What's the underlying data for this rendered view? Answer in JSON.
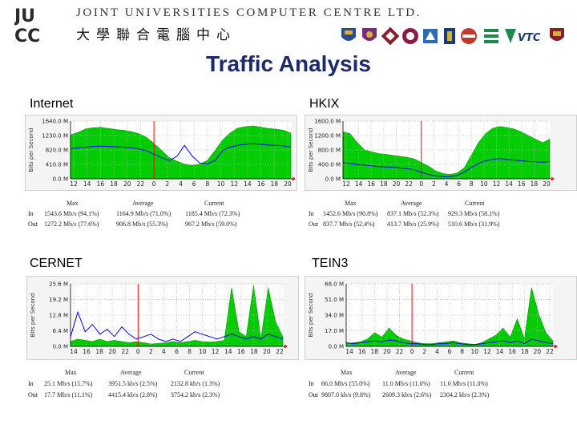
{
  "header": {
    "logo_text": "JUCC",
    "org_name_en": "JOINT UNIVERSITIES COMPUTER CENTRE LTD.",
    "org_name_zh": "大學聯合電腦中心",
    "member_emblems": [
      "hku-emblem",
      "cuhk-emblem",
      "polyu-emblem",
      "cityu-emblem",
      "hkbu-emblem",
      "hkust-emblem",
      "lingnan-emblem",
      "eduhk-emblem",
      "vtc-logo",
      "ouhk-emblem"
    ],
    "vtc_label": "VTC"
  },
  "title": "Traffic Analysis",
  "colors": {
    "in": "#00cc00",
    "out": "#0000ff",
    "grid_marker": "#ff0000",
    "title": "#1d2a6b"
  },
  "stats_headers": [
    "Max",
    "Average",
    "Current"
  ],
  "stats_row_labels": [
    "In",
    "Out"
  ],
  "chart_data": [
    {
      "type": "area",
      "label": "Internet",
      "ylabel": "Bits per Second",
      "y_ticks": [
        "1640.0 M",
        "1230.0 M",
        "820.0 M",
        "410.0 M",
        "0.0 M"
      ],
      "ylim": [
        0,
        1640
      ],
      "x_ticks": [
        "12",
        "14",
        "16",
        "18",
        "20",
        "22",
        "0",
        "2",
        "4",
        "6",
        "8",
        "10",
        "12",
        "14",
        "16",
        "18",
        "20"
      ],
      "series": [
        {
          "name": "In",
          "values": [
            1250,
            1320,
            1420,
            1450,
            1460,
            1430,
            1400,
            1380,
            1340,
            1280,
            1180,
            1000,
            800,
            600,
            500,
            420,
            380,
            420,
            520,
            800,
            1100,
            1300,
            1440,
            1480,
            1500,
            1470,
            1430,
            1410,
            1380,
            1300
          ]
        },
        {
          "name": "Out",
          "values": [
            850,
            880,
            900,
            920,
            930,
            920,
            910,
            900,
            880,
            850,
            800,
            700,
            600,
            520,
            640,
            950,
            650,
            450,
            420,
            520,
            800,
            900,
            950,
            980,
            1000,
            980,
            960,
            950,
            940,
            900
          ]
        }
      ],
      "stats": {
        "in": [
          "1543.6 Mb/s (94.1%)",
          "1164.9 Mb/s (71.0%)",
          "1185.4 Mb/s (72.3%)"
        ],
        "out": [
          "1272.2 Mb/s (77.6%)",
          "906.8 Mb/s (55.3%)",
          "967.2 Mb/s (59.0%)"
        ]
      }
    },
    {
      "type": "area",
      "label": "HKIX",
      "ylabel": "Bits per Second",
      "y_ticks": [
        "1600.0 M",
        "1200.0 M",
        "800.0 M",
        "400.0 M",
        "0.0 M"
      ],
      "ylim": [
        0,
        1600
      ],
      "x_ticks": [
        "12",
        "14",
        "16",
        "18",
        "20",
        "22",
        "0",
        "2",
        "4",
        "6",
        "8",
        "10",
        "12",
        "14",
        "16",
        "18",
        "20"
      ],
      "series": [
        {
          "name": "In",
          "values": [
            1300,
            1250,
            1000,
            800,
            750,
            700,
            680,
            650,
            620,
            600,
            550,
            450,
            350,
            220,
            150,
            120,
            160,
            300,
            650,
            1000,
            1250,
            1400,
            1450,
            1420,
            1380,
            1300,
            1200,
            1100,
            1000,
            1100
          ]
        },
        {
          "name": "Out",
          "values": [
            450,
            420,
            400,
            380,
            360,
            340,
            330,
            320,
            300,
            280,
            250,
            180,
            120,
            80,
            60,
            60,
            90,
            180,
            320,
            420,
            500,
            540,
            560,
            540,
            520,
            500,
            480,
            470,
            460,
            480
          ]
        }
      ],
      "stats": {
        "in": [
          "1452.6 Mb/s (90.8%)",
          "837.1 Mb/s (52.3%)",
          "929.3 Mb/s (58.1%)"
        ],
        "out": [
          "837.7 Mb/s (52.4%)",
          "413.7 Mb/s (25.9%)",
          "510.6 Mb/s (31.9%)"
        ]
      }
    },
    {
      "type": "area",
      "label": "CERNET",
      "ylabel": "Bits per Second",
      "y_ticks": [
        "25.6 M",
        "19.2 M",
        "12.8 M",
        "6.4 M",
        "0.0 M"
      ],
      "ylim": [
        0,
        25.6
      ],
      "x_ticks": [
        "14",
        "16",
        "18",
        "20",
        "22",
        "0",
        "2",
        "4",
        "6",
        "8",
        "10",
        "12",
        "14",
        "16",
        "18",
        "20",
        "22"
      ],
      "series": [
        {
          "name": "In",
          "values": [
            2,
            3,
            2.5,
            2,
            3,
            2,
            2.5,
            2,
            1.5,
            2,
            1.5,
            1,
            1.2,
            1.5,
            2,
            1.5,
            2,
            2.5,
            2,
            1.8,
            2,
            2.5,
            24,
            6,
            4,
            25,
            3,
            24,
            10,
            4
          ]
        },
        {
          "name": "Out",
          "values": [
            4,
            14,
            6,
            9,
            5,
            7,
            4,
            8,
            5,
            3,
            4,
            5,
            3,
            2,
            3,
            2,
            4,
            6,
            5,
            4,
            3,
            4,
            5,
            4,
            3,
            4,
            3,
            5,
            4,
            3
          ]
        }
      ],
      "stats": {
        "in": [
          "25.1 Mb/s (15.7%)",
          "3951.5 kb/s (2.5%)",
          "2132.8 kb/s (1.3%)"
        ],
        "out": [
          "17.7 Mb/s (11.1%)",
          "4415.4 kb/s (2.8%)",
          "3754.2 kb/s (2.3%)"
        ]
      }
    },
    {
      "type": "area",
      "label": "TEIN3",
      "ylabel": "Bits per Second",
      "y_ticks": [
        "68.0 M",
        "51.0 M",
        "34.0 M",
        "17.0 M",
        "0.0 M"
      ],
      "ylim": [
        0,
        68
      ],
      "x_ticks": [
        "14",
        "16",
        "18",
        "20",
        "22",
        "0",
        "2",
        "4",
        "6",
        "8",
        "10",
        "12",
        "14",
        "16",
        "18",
        "20",
        "22"
      ],
      "series": [
        {
          "name": "In",
          "values": [
            3,
            4,
            5,
            8,
            15,
            10,
            20,
            12,
            8,
            6,
            4,
            3,
            3,
            4,
            5,
            6,
            4,
            3,
            2,
            4,
            8,
            12,
            20,
            10,
            30,
            8,
            64,
            35,
            15,
            6
          ]
        },
        {
          "name": "Out",
          "values": [
            4,
            3,
            4,
            5,
            6,
            5,
            7,
            6,
            4,
            3,
            3,
            2,
            2,
            3,
            3,
            4,
            3,
            2,
            2,
            3,
            4,
            5,
            6,
            4,
            6,
            3,
            8,
            6,
            4,
            3
          ]
        }
      ],
      "stats": {
        "in": [
          "66.0 Mb/s (55.0%)",
          "11.0 Mb/s (11.0%)",
          "11.0 Mb/s (11.0%)"
        ],
        "out": [
          "9807.0 kb/s (9.8%)",
          "2609.3 kb/s (2.6%)",
          "2304.2 kb/s (2.3%)"
        ]
      }
    }
  ]
}
